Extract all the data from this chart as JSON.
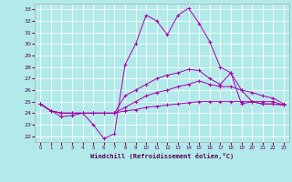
{
  "title": "Windchill (Refroidissement éolien,°C)",
  "background_color": "#b2eaea",
  "grid_color": "#ffffff",
  "line_color": "#aa00aa",
  "xlim": [
    -0.5,
    23.5
  ],
  "ylim": [
    21.5,
    33.5
  ],
  "xticks": [
    0,
    1,
    2,
    3,
    4,
    5,
    6,
    7,
    8,
    9,
    10,
    11,
    12,
    13,
    14,
    15,
    16,
    17,
    18,
    19,
    20,
    21,
    22,
    23
  ],
  "yticks": [
    22,
    23,
    24,
    25,
    26,
    27,
    28,
    29,
    30,
    31,
    32,
    33
  ],
  "series": [
    [
      24.8,
      24.2,
      23.7,
      23.8,
      24.0,
      23.0,
      21.8,
      22.2,
      28.2,
      30.0,
      32.5,
      32.0,
      30.8,
      32.5,
      33.1,
      31.8,
      30.2,
      28.0,
      27.5,
      24.8,
      25.0,
      24.8,
      24.8,
      24.7
    ],
    [
      24.8,
      24.2,
      24.0,
      24.0,
      24.0,
      24.0,
      24.0,
      24.0,
      25.5,
      26.0,
      26.5,
      27.0,
      27.3,
      27.5,
      27.8,
      27.7,
      27.0,
      26.5,
      27.5,
      26.0,
      25.0,
      24.8,
      24.8,
      24.7
    ],
    [
      24.8,
      24.2,
      24.0,
      24.0,
      24.0,
      24.0,
      24.0,
      24.0,
      24.5,
      25.0,
      25.5,
      25.8,
      26.0,
      26.3,
      26.5,
      26.8,
      26.5,
      26.3,
      26.3,
      26.0,
      25.8,
      25.5,
      25.3,
      24.8
    ],
    [
      24.8,
      24.2,
      24.0,
      24.0,
      24.0,
      24.0,
      24.0,
      24.0,
      24.2,
      24.3,
      24.5,
      24.6,
      24.7,
      24.8,
      24.9,
      25.0,
      25.0,
      25.0,
      25.0,
      25.0,
      25.0,
      25.0,
      25.0,
      24.7
    ]
  ]
}
